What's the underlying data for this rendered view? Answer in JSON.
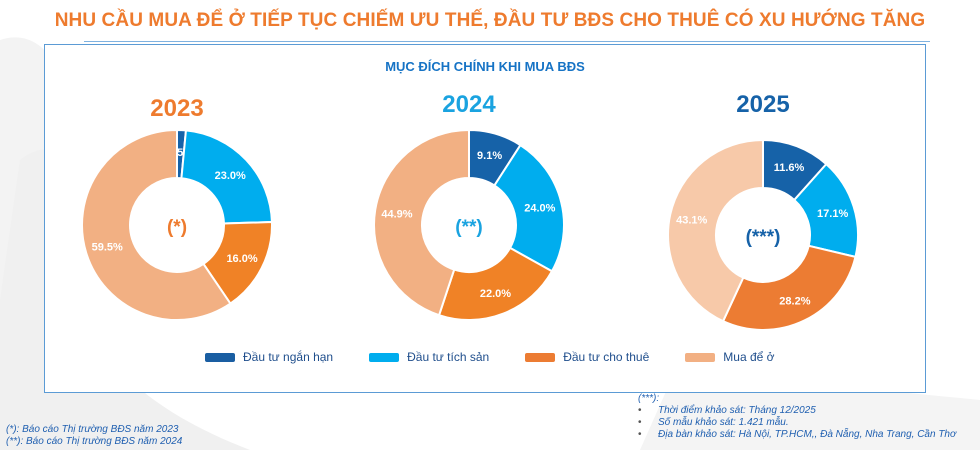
{
  "header": {
    "title": "NHU CẦU MUA ĐỂ Ở TIẾP TỤC CHIẾM ƯU THẾ, ĐẦU TƯ BĐS CHO THUÊ CÓ XU HƯỚNG TĂNG"
  },
  "panel": {
    "subtitle": "MỤC ĐÍCH CHÍNH KHI MUA BĐS"
  },
  "colors": {
    "title": "#ee7b2e",
    "subtitle": "#1673c5",
    "year_2023": "#ee7b2e",
    "year_2024": "#1aa3e0",
    "year_2025": "#1662a8",
    "ngan_han": "#1662a8",
    "tich_san": "#00adee",
    "cho_thue": "#f08226",
    "mua_de_o": "#f2b083",
    "mua_de_o_2025": "#f7c9a9",
    "cho_thue_2025": "#ec7c33"
  },
  "legend": [
    {
      "label": "Đầu tư ngắn hạn",
      "color": "#1a5ea2"
    },
    {
      "label": "Đầu tư tích sản",
      "color": "#00adee"
    },
    {
      "label": "Đầu tư cho thuê",
      "color": "#ec7c33"
    },
    {
      "label": "Mua để ở",
      "color": "#f2b083"
    }
  ],
  "chart_data": [
    {
      "type": "pie",
      "variant": "donut",
      "title": "2023",
      "center_label": "(*)",
      "categories": [
        "Đầu tư ngắn hạn",
        "Đầu tư tích sản",
        "Đầu tư cho thuê",
        "Mua để ở"
      ],
      "values": [
        1.5,
        23.0,
        16.0,
        59.5
      ],
      "labels": [
        "1.5%",
        "23.0%",
        "16.0%",
        "59.5%"
      ]
    },
    {
      "type": "pie",
      "variant": "donut",
      "title": "2024",
      "center_label": "(**)",
      "categories": [
        "Đầu tư ngắn hạn",
        "Đầu tư tích sản",
        "Đầu tư cho thuê",
        "Mua để ở"
      ],
      "values": [
        9.1,
        24.0,
        22.0,
        44.9
      ],
      "labels": [
        "9.1%",
        "24.0%",
        "22.0%",
        "44.9%"
      ]
    },
    {
      "type": "pie",
      "variant": "donut",
      "title": "2025",
      "center_label": "(***)",
      "categories": [
        "Đầu tư ngắn hạn",
        "Đầu tư tích sản",
        "Đầu tư cho thuê",
        "Mua để ở"
      ],
      "values": [
        11.6,
        17.1,
        28.2,
        43.1
      ],
      "labels": [
        "11.6%",
        "17.1%",
        "28.2%",
        "43.1%"
      ]
    }
  ],
  "notes_left": [
    "(*): Báo cáo Thị trường BĐS năm 2023",
    "(**): Báo cáo Thị trường BĐS năm 2024"
  ],
  "notes_right": {
    "head": "(***):",
    "items": [
      "Thời điểm khảo sát: Tháng 12/2025",
      "Số mẫu khảo sát: 1.421 mẫu.",
      "Địa bàn khảo sát: Hà Nội, TP.HCM,, Đà Nẵng, Nha Trang, Cần Thơ"
    ]
  }
}
